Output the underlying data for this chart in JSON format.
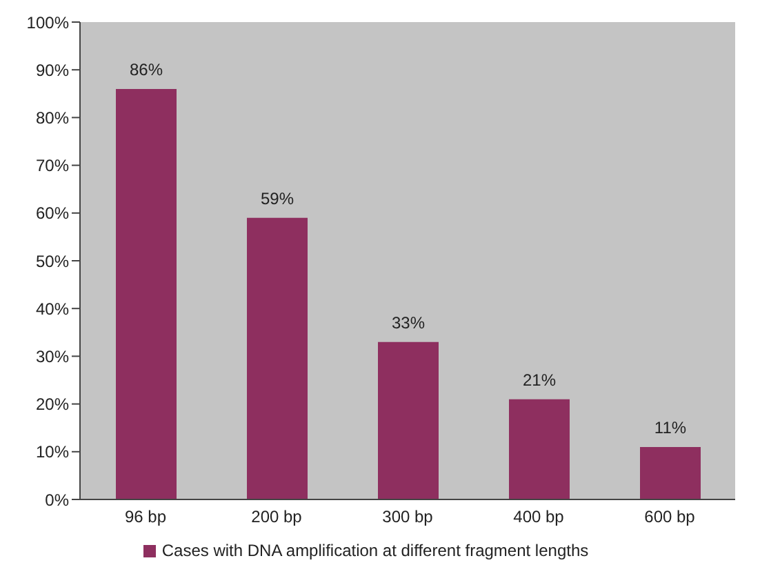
{
  "chart_data": {
    "type": "bar",
    "categories": [
      "96 bp",
      "200 bp",
      "300 bp",
      "400 bp",
      "600 bp"
    ],
    "series": [
      {
        "name": "Cases with DNA amplification at different fragment lengths",
        "color": "#8e2f5f",
        "values": [
          86,
          59,
          33,
          21,
          11
        ],
        "value_labels": [
          "86%",
          "59%",
          "33%",
          "21%",
          "11%"
        ]
      }
    ],
    "ylim": [
      0,
      100
    ],
    "yticks": [
      {
        "value": 0,
        "label": "0%"
      },
      {
        "value": 10,
        "label": "10%"
      },
      {
        "value": 20,
        "label": "20%"
      },
      {
        "value": 30,
        "label": "30%"
      },
      {
        "value": 40,
        "label": "40%"
      },
      {
        "value": 50,
        "label": "50%"
      },
      {
        "value": 60,
        "label": "60%"
      },
      {
        "value": 70,
        "label": "70%"
      },
      {
        "value": 80,
        "label": "80%"
      },
      {
        "value": 90,
        "label": "90%"
      },
      {
        "value": 100,
        "label": "100%"
      }
    ],
    "legend": "bottom"
  }
}
